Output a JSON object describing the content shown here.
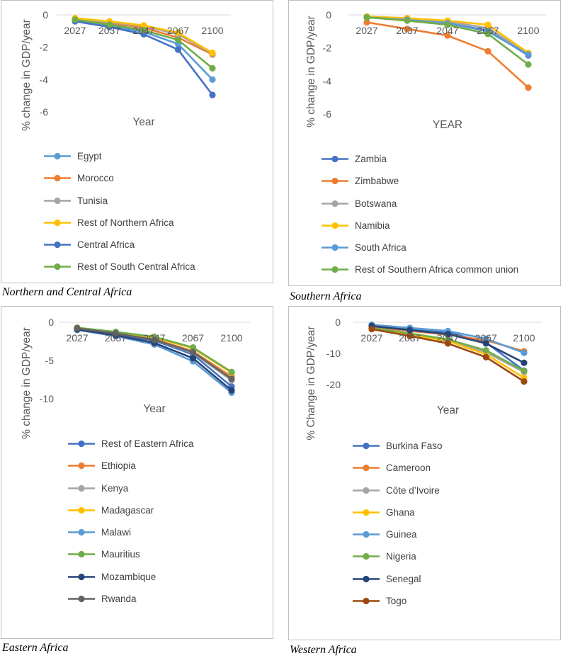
{
  "colors": [
    "#4472C4",
    "#ED7D31",
    "#A5A5A5",
    "#FFC000",
    "#5B9BD5",
    "#70AD47",
    "#264478",
    "#636363",
    "#9E480E"
  ],
  "chart_data": [
    {
      "id": "north-central",
      "type": "line",
      "caption": "Northern and Central Africa",
      "title": "",
      "xlabel": "Year",
      "ylabel": "% change in GDP/year",
      "categories": [
        "2027",
        "2037",
        "2047",
        "2067",
        "2100"
      ],
      "yticks": [
        0,
        -2,
        -4,
        -6
      ],
      "ylim": [
        -6,
        0
      ],
      "series": [
        {
          "name": "Egypt",
          "color": "#5B9BD5",
          "values": [
            -0.35,
            -0.7,
            -1.05,
            -1.8,
            -4.0
          ]
        },
        {
          "name": "Morocco",
          "color": "#ED7D31",
          "values": [
            -0.25,
            -0.5,
            -0.8,
            -1.4,
            -2.45
          ]
        },
        {
          "name": "Tunisia",
          "color": "#A5A5A5",
          "values": [
            -0.25,
            -0.45,
            -0.7,
            -1.2,
            -2.4
          ]
        },
        {
          "name": "Rest of Northern Africa",
          "color": "#FFC000",
          "values": [
            -0.2,
            -0.4,
            -0.65,
            -1.1,
            -2.35
          ]
        },
        {
          "name": "Central Africa",
          "color": "#4472C4",
          "values": [
            -0.4,
            -0.75,
            -1.2,
            -2.15,
            -4.95
          ]
        },
        {
          "name": "Rest of South Central Africa",
          "color": "#70AD47",
          "values": [
            -0.3,
            -0.6,
            -0.95,
            -1.55,
            -3.3
          ]
        }
      ]
    },
    {
      "id": "southern",
      "type": "line",
      "caption": "Southern Africa",
      "title": "",
      "xlabel": "YEAR",
      "ylabel": "% change in GDP/year",
      "categories": [
        "2027",
        "2037",
        "2047",
        "2067",
        "2100"
      ],
      "yticks": [
        0,
        -2,
        -4,
        -6
      ],
      "ylim": [
        -6,
        0
      ],
      "series": [
        {
          "name": "Zambia",
          "color": "#4472C4",
          "values": [
            -0.15,
            -0.3,
            -0.5,
            -0.95,
            -2.45
          ]
        },
        {
          "name": "Zimbabwe",
          "color": "#ED7D31",
          "values": [
            -0.45,
            -0.85,
            -1.25,
            -2.2,
            -4.4
          ]
        },
        {
          "name": "Botswana",
          "color": "#A5A5A5",
          "values": [
            -0.1,
            -0.2,
            -0.4,
            -0.8,
            -2.35
          ]
        },
        {
          "name": "Namibia",
          "color": "#FFC000",
          "values": [
            -0.1,
            -0.2,
            -0.35,
            -0.6,
            -2.3
          ]
        },
        {
          "name": "South Africa",
          "color": "#5B9BD5",
          "values": [
            -0.15,
            -0.3,
            -0.5,
            -1.0,
            -2.4
          ]
        },
        {
          "name": "Rest of Southern Africa common union",
          "color": "#70AD47",
          "values": [
            -0.15,
            -0.35,
            -0.6,
            -1.15,
            -3.0
          ]
        }
      ]
    },
    {
      "id": "eastern",
      "type": "line",
      "caption": "Eastern Africa",
      "title": "",
      "xlabel": "Year",
      "ylabel": "% change in GDP/year",
      "categories": [
        "2027",
        "2037",
        "2047",
        "2067",
        "2100"
      ],
      "yticks": [
        0,
        -5,
        -10
      ],
      "ylim": [
        -10,
        0
      ],
      "series": [
        {
          "name": "Rest of Eastern Africa",
          "color": "#4472C4",
          "values": [
            -0.9,
            -1.6,
            -2.4,
            -4.2,
            -8.4
          ]
        },
        {
          "name": "Ethiopia",
          "color": "#ED7D31",
          "values": [
            -0.8,
            -1.4,
            -2.2,
            -3.8,
            -7.1
          ]
        },
        {
          "name": "Kenya",
          "color": "#A5A5A5",
          "values": [
            -0.8,
            -1.45,
            -2.3,
            -4.0,
            -7.6
          ]
        },
        {
          "name": "Madagascar",
          "color": "#FFC000",
          "values": [
            -0.75,
            -1.3,
            -2.0,
            -3.4,
            -6.6
          ]
        },
        {
          "name": "Malawi",
          "color": "#5B9BD5",
          "values": [
            -1.0,
            -1.8,
            -2.9,
            -5.1,
            -9.2
          ]
        },
        {
          "name": "Mauritius",
          "color": "#70AD47",
          "values": [
            -0.7,
            -1.25,
            -1.9,
            -3.3,
            -6.5
          ]
        },
        {
          "name": "Mozambique",
          "color": "#264478",
          "values": [
            -0.95,
            -1.7,
            -2.7,
            -4.7,
            -8.9
          ]
        },
        {
          "name": "Rwanda",
          "color": "#636363",
          "values": [
            -0.8,
            -1.45,
            -2.3,
            -3.9,
            -7.4
          ]
        }
      ]
    },
    {
      "id": "western",
      "type": "line",
      "caption": "Western Africa",
      "title": "",
      "xlabel": "Year",
      "ylabel": "% Change in GDP/year",
      "categories": [
        "2027",
        "2037",
        "2047",
        "2067",
        "2100"
      ],
      "yticks": [
        0,
        -10,
        -20
      ],
      "ylim": [
        -25,
        0
      ],
      "series": [
        {
          "name": "Burkina Faso",
          "color": "#4472C4",
          "values": [
            -1.0,
            -2.3,
            -3.2,
            -6.5,
            -15.5
          ]
        },
        {
          "name": "Cameroon",
          "color": "#ED7D31",
          "values": [
            -1.5,
            -2.8,
            -4.0,
            -5.8,
            -9.3
          ]
        },
        {
          "name": "Côte d’Ivoire",
          "color": "#A5A5A5",
          "values": [
            -1.8,
            -3.8,
            -5.8,
            -9.6,
            -16.0
          ]
        },
        {
          "name": "Ghana",
          "color": "#FFC000",
          "values": [
            -2.0,
            -4.0,
            -6.0,
            -10.3,
            -17.8
          ]
        },
        {
          "name": "Guinea",
          "color": "#5B9BD5",
          "values": [
            -0.8,
            -1.8,
            -2.8,
            -5.3,
            -9.8
          ]
        },
        {
          "name": "Nigeria",
          "color": "#70AD47",
          "values": [
            -1.8,
            -3.6,
            -5.5,
            -9.0,
            -15.6
          ]
        },
        {
          "name": "Senegal",
          "color": "#264478",
          "values": [
            -1.2,
            -2.5,
            -3.8,
            -6.8,
            -13.0
          ]
        },
        {
          "name": "Togo",
          "color": "#9E480E",
          "values": [
            -2.2,
            -4.4,
            -6.8,
            -11.2,
            -19.0
          ]
        }
      ]
    }
  ]
}
